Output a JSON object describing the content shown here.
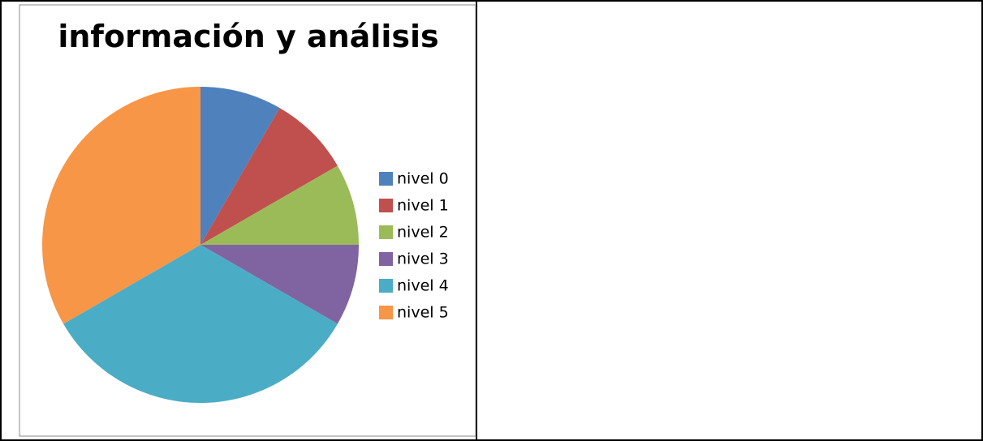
{
  "chart_data": {
    "type": "pie",
    "title": "información y análisis",
    "categories": [
      "nivel 0",
      "nivel 1",
      "nivel 2",
      "nivel 3",
      "nivel 4",
      "nivel 5"
    ],
    "values": [
      1,
      1,
      1,
      1,
      4,
      4
    ],
    "colors": [
      "#4f81bd",
      "#c0504d",
      "#9bbb59",
      "#8064a2",
      "#4bacc6",
      "#f79646"
    ],
    "legend": "right"
  }
}
